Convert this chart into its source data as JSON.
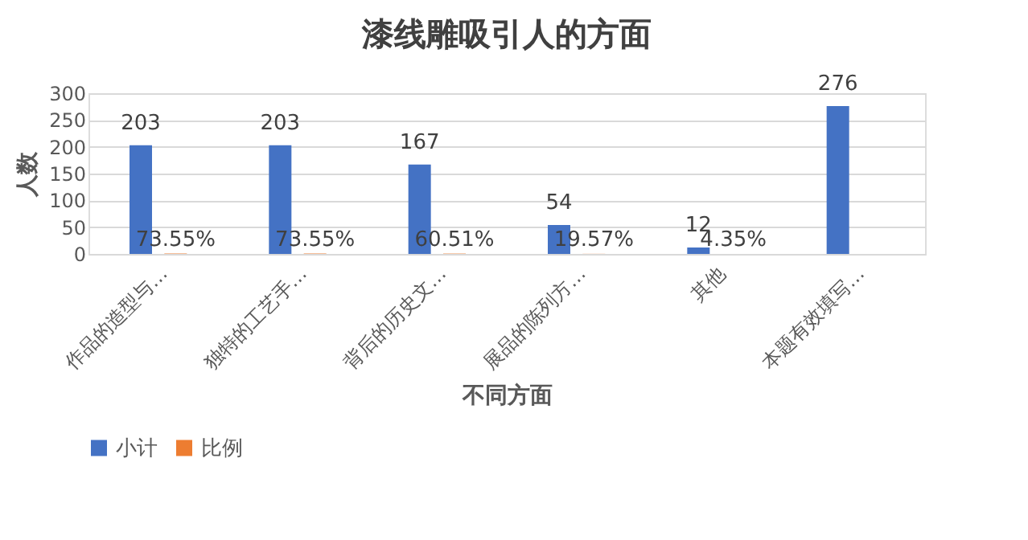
{
  "chart_data": {
    "type": "bar",
    "title": "漆线雕吸引人的方面",
    "xlabel": "不同方面",
    "ylabel": "人数",
    "categories": [
      "作品的造型与…",
      "独特的工艺手…",
      "背后的历史文…",
      "展品的陈列方…",
      "其他",
      "本题有效填写…"
    ],
    "series": [
      {
        "name": "小计",
        "color": "#4472c4",
        "values": [
          203,
          203,
          167,
          54,
          12,
          276
        ],
        "value_labels": [
          "203",
          "203",
          "167",
          "54",
          "12",
          "276"
        ]
      },
      {
        "name": "比例",
        "color": "#ed7d31",
        "values": [
          0.7355,
          0.7355,
          0.6051,
          0.1957,
          0.0435,
          null
        ],
        "value_labels": [
          "73.55%",
          "73.55%",
          "60.51%",
          "19.57%",
          "4.35%",
          null
        ]
      }
    ],
    "ylim": [
      0,
      300
    ],
    "yticks": [
      0,
      50,
      100,
      150,
      200,
      250,
      300
    ],
    "grid": "y",
    "legend": "bottom"
  }
}
